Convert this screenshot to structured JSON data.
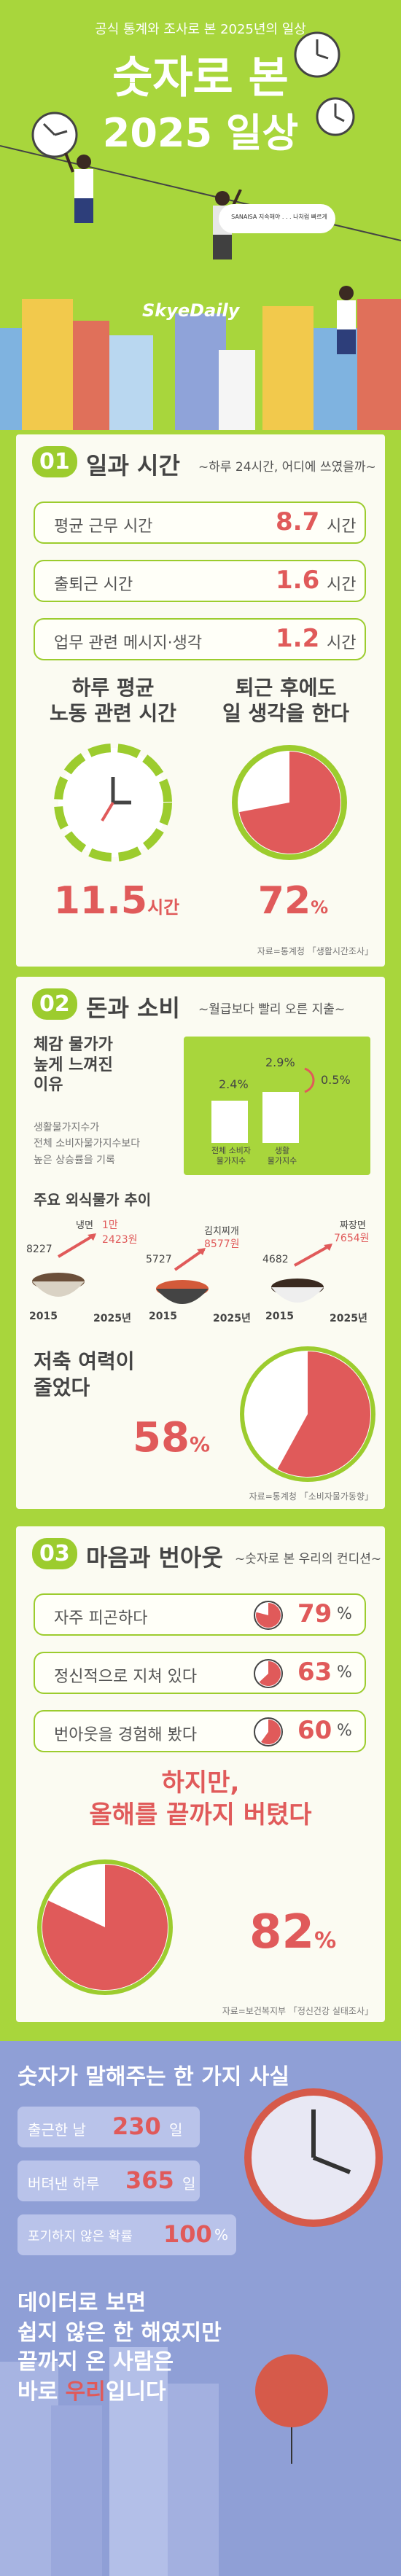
{
  "header": {
    "subtitle": "공식 통계와 조사로 본 2025년의 일상",
    "title_line1": "숫자로 본",
    "title_line2": "2025 일상",
    "speech_bubble": "SANAISA 지속해야 . . . 나처럼 빠르게",
    "logo": "SkyeDaily"
  },
  "section1": {
    "num": "01",
    "title": "일과 시간",
    "subtitle": "~하루 24시간, 어디에 쓰였을까~",
    "rows": [
      {
        "label": "평균 근무 시간",
        "value": "8.7",
        "unit": "시간"
      },
      {
        "label": "출퇴근 시간",
        "value": "1.6",
        "unit": "시간"
      },
      {
        "label": "업무 관련 메시지·생각",
        "value": "1.2",
        "unit": "시간"
      }
    ],
    "left_heading1": "하루 평균",
    "left_heading2": "노동 관련 시간",
    "left_value": "11.5",
    "left_unit": "시간",
    "right_heading1": "퇴근 후에도",
    "right_heading2": "일 생각을 한다",
    "right_value": "72",
    "right_unit": "%",
    "right_pct": 72,
    "source": "자료=통계청 「생활시간조사」"
  },
  "section2": {
    "num": "02",
    "title": "돈과 소비",
    "subtitle": "~월급보다 빨리 오른 지출~",
    "left_heading1": "체감 물가가",
    "left_heading2": "높게 느껴진",
    "left_heading3": "이유",
    "left_note1": "생활물가지수가",
    "left_note2": "전체 소비자물가지수보다",
    "left_note3": "높은 상승률을 기록",
    "bar_chart": {
      "bars": [
        {
          "label1": "전체 소비자",
          "label2": "물가지수",
          "value": "2.4%",
          "v": 2.4
        },
        {
          "label1": "생활",
          "label2": "물가지수",
          "value": "2.9%",
          "v": 2.9
        }
      ],
      "diff": "0.5%"
    },
    "food_heading": "주요 외식물가 추이",
    "food_items": [
      {
        "name": "냉면",
        "old": "8227",
        "new": "1만2423원",
        "y1": "2015",
        "y2": "2025년"
      },
      {
        "name": "김치찌개",
        "old": "5727",
        "new": "8577원",
        "y1": "2015",
        "y2": "2025년"
      },
      {
        "name": "짜장면",
        "old": "4682",
        "new": "7654원",
        "y1": "2015",
        "y2": "2025년"
      }
    ],
    "savings_heading1": "저축 여력이",
    "savings_heading2": "줄었다",
    "savings_value": "58",
    "savings_unit": "%",
    "savings_pct": 58,
    "source": "자료=통계청 「소비자물가동향」"
  },
  "section3": {
    "num": "03",
    "title": "마음과 번아웃",
    "subtitle": "~숫자로 본 우리의 컨디션~",
    "rows": [
      {
        "label": "자주 피곤하다",
        "value": "79",
        "unit": "%",
        "pct": 79
      },
      {
        "label": "정신적으로 지쳐 있다",
        "value": "63",
        "unit": "%",
        "pct": 63
      },
      {
        "label": "번아웃을 경험해 봤다",
        "value": "60",
        "unit": "%",
        "pct": 60
      }
    ],
    "heading1": "하지만,",
    "heading2": "올해를 끝까지 버텼다",
    "big_value": "82",
    "big_unit": "%",
    "big_pct": 82,
    "source": "자료=보건복지부 「정신건강 실태조사」"
  },
  "footer": {
    "title": "숫자가 말해주는 한 가지 사실",
    "rows": [
      {
        "label": "출근한 날",
        "value": "230",
        "unit": "일"
      },
      {
        "label": "버텨낸 하루",
        "value": "365",
        "unit": "일"
      },
      {
        "label": "포기하지 않은 확률",
        "value": "100",
        "unit": "%"
      }
    ],
    "closing1": "데이터로 보면",
    "closing2": "쉽지 않은 한 해였지만",
    "closing3": "끝까지 온 사람은",
    "closing4_a": "바로 ",
    "closing4_b": "우리",
    "closing4_c": "입니다",
    "colors": {
      "accent": "#9ccc2e",
      "red": "#e05a5a",
      "footer_bg": "#8f9fd6"
    }
  }
}
